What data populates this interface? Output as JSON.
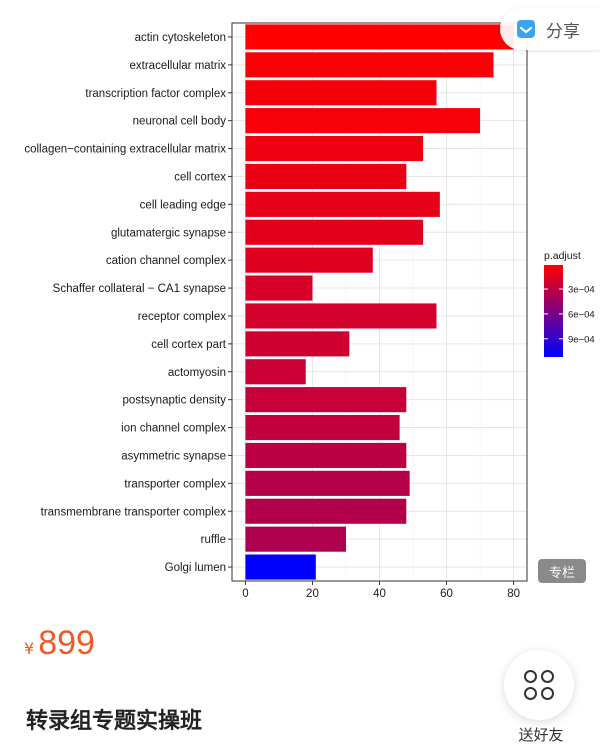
{
  "chart_data": {
    "type": "bar",
    "orientation": "horizontal",
    "categories": [
      "actin cytoskeleton",
      "extracellular matrix",
      "transcription factor complex",
      "neuronal cell body",
      "collagen−containing extracellular matrix",
      "cell cortex",
      "cell leading edge",
      "glutamatergic synapse",
      "cation channel complex",
      "Schaffer collateral − CA1 synapse",
      "receptor complex",
      "cell cortex part",
      "actomyosin",
      "postsynaptic density",
      "ion channel complex",
      "asymmetric synapse",
      "transporter complex",
      "transmembrane transporter complex",
      "ruffle",
      "Golgi lumen"
    ],
    "values": [
      80,
      74,
      57,
      70,
      53,
      48,
      58,
      53,
      38,
      20,
      57,
      31,
      18,
      48,
      46,
      48,
      49,
      48,
      30,
      21
    ],
    "p_adjust": [
      1e-05,
      3e-05,
      6e-05,
      5e-05,
      8e-05,
      0.0001,
      0.00012,
      0.00013,
      0.00015,
      0.00019,
      0.0002,
      0.00022,
      0.00024,
      0.00026,
      0.00028,
      0.0003,
      0.00033,
      0.00034,
      0.00036,
      0.00112
    ],
    "xlim": [
      -4,
      84
    ],
    "x_ticks": [
      "0",
      "20",
      "40",
      "60",
      "80"
    ],
    "legend": {
      "title": "p.adjust",
      "labels": [
        "3e−04",
        "6e−04",
        "9e−04"
      ],
      "label_values": [
        0.0003,
        0.0006,
        0.0009
      ],
      "range": [
        1e-05,
        0.00112
      ],
      "low_color": "#ff0000",
      "high_color": "#0000ff",
      "placement": "right"
    },
    "grid": true,
    "xlabel": "",
    "ylabel": ""
  },
  "share": {
    "label": "分享",
    "icon": "share-icon"
  },
  "badge": {
    "label": "专栏"
  },
  "price": {
    "symbol": "¥",
    "value": "899"
  },
  "course": {
    "title": "转录组专题实操班"
  },
  "gift": {
    "label": "送好友",
    "icon": "grid-icon"
  },
  "colors": {
    "price": "#f05a28",
    "badge_bg": "#8a8a8a"
  }
}
